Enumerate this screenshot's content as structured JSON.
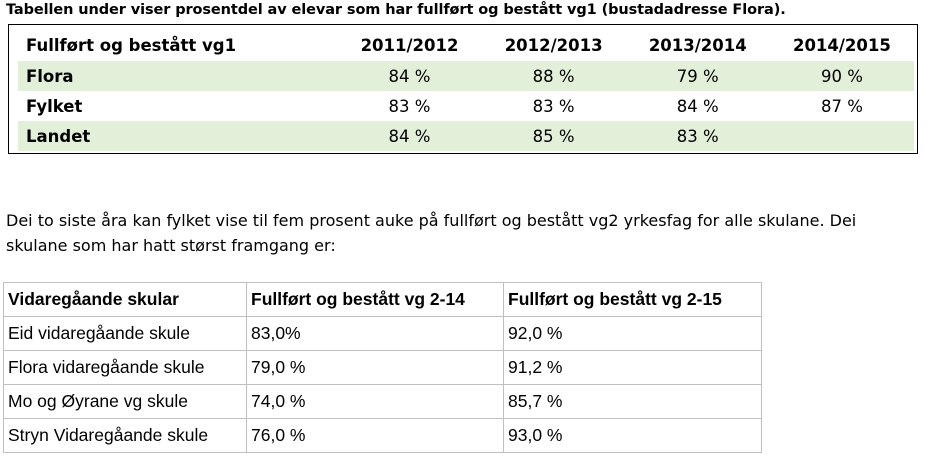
{
  "intro1": "Tabellen under viser prosentdel av elevar som har fullført og bestått vg1 (bustadadresse Flora).",
  "table1": {
    "header": [
      "Fullført og bestått vg1",
      "2011/2012",
      "2012/2013",
      "2013/2014",
      "2014/2015"
    ],
    "rows": [
      [
        "Flora",
        "84 %",
        "88 %",
        "79 %",
        "90 %"
      ],
      [
        "Fylket",
        "83 %",
        "83 %",
        "84 %",
        "87 %"
      ],
      [
        "Landet",
        "84 %",
        "85 %",
        "83 %",
        ""
      ]
    ],
    "stripe_color": "#e2efd9"
  },
  "intro2": "Dei to siste åra kan fylket vise til fem prosent auke på fullført og bestått vg2 yrkesfag for alle skulane. Dei skulane som har hatt størst framgang er:",
  "table2": {
    "header": [
      "Vidaregåande  skular",
      "Fullført og bestått vg 2-14",
      "Fullført og bestått vg 2-15"
    ],
    "rows": [
      [
        "Eid vidaregåande skule",
        "83,0%",
        "92,0 %"
      ],
      [
        "Flora vidaregåande skule",
        "79,0 %",
        "91,2 %"
      ],
      [
        "Mo og Øyrane vg skule",
        "74,0 %",
        "85,7 %"
      ],
      [
        "Stryn Vidaregåande skule",
        "76,0 %",
        "93,0 %"
      ]
    ]
  }
}
